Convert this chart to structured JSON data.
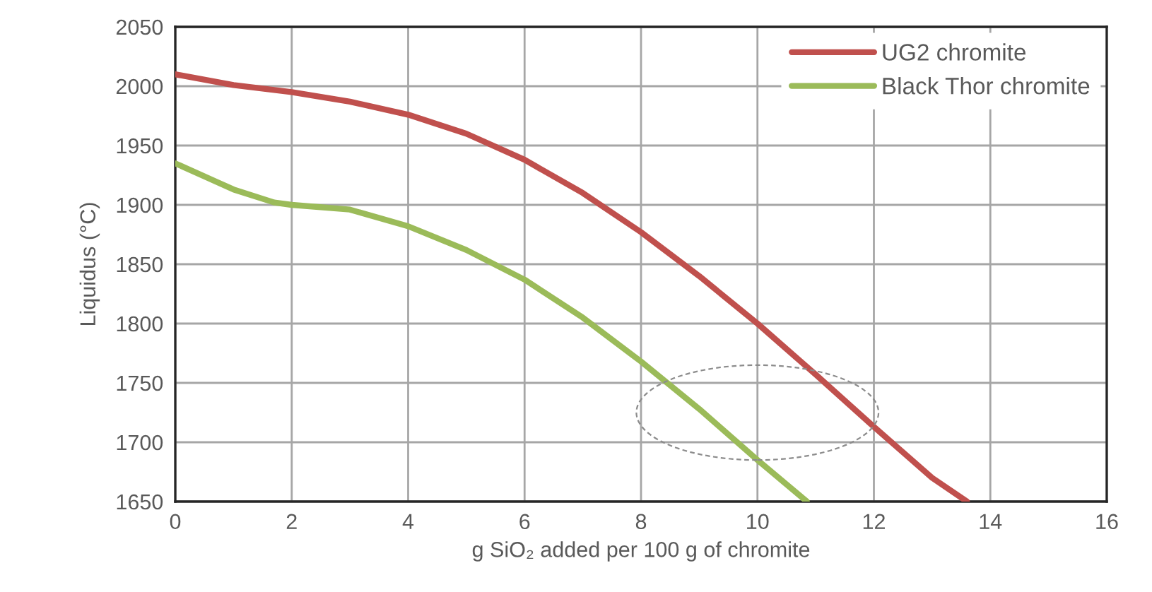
{
  "chart_data": {
    "type": "line",
    "xlabel": "g SiO₂ added per 100 g of chromite",
    "ylabel": "Liquidus (°C)",
    "xlim": [
      0,
      16
    ],
    "xticks": [
      0,
      2,
      4,
      6,
      8,
      10,
      12,
      14,
      16
    ],
    "ylim": [
      1650,
      2050
    ],
    "yticks": [
      1650,
      1700,
      1750,
      1800,
      1850,
      1900,
      1950,
      2000,
      2050
    ],
    "grid": true,
    "legend": "top right",
    "marker": "none",
    "line_style": "solid",
    "series": [
      {
        "name": "UG2 chromite",
        "color": "#c0504d",
        "x": [
          0,
          1,
          2,
          3,
          4,
          5,
          6,
          7,
          8,
          9,
          10,
          11,
          12,
          13,
          13.6
        ],
        "values": [
          2010,
          2001,
          1995,
          1987,
          1976,
          1960,
          1938,
          1910,
          1877,
          1840,
          1800,
          1757,
          1713,
          1670,
          1650
        ]
      },
      {
        "name": "Black Thor chromite",
        "color": "#9bbb59",
        "x": [
          0,
          1,
          1.7,
          2,
          3,
          4,
          5,
          6,
          7,
          8,
          9,
          10,
          10.85
        ],
        "values": [
          1935,
          1913,
          1902,
          1900,
          1896,
          1882,
          1862,
          1837,
          1805,
          1768,
          1728,
          1685,
          1650
        ]
      }
    ]
  }
}
